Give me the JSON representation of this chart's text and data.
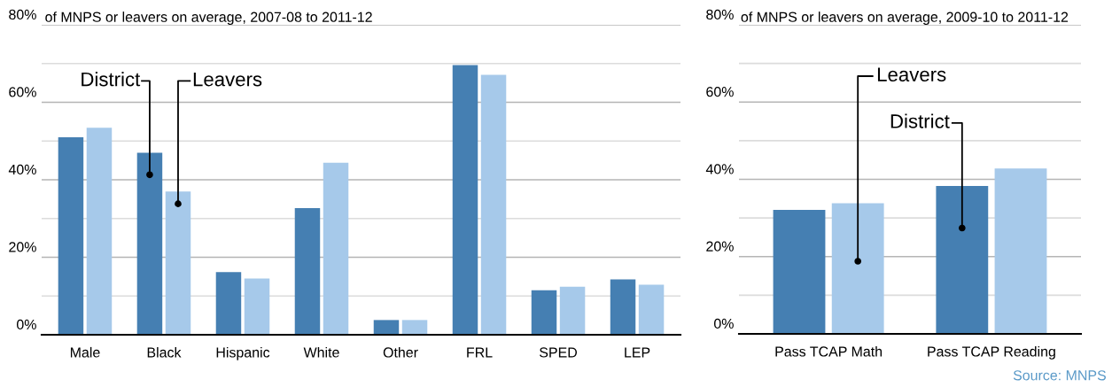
{
  "chart_data": [
    {
      "type": "bar",
      "title": "of MNPS or leavers on average, 2007-08 to 2011-12",
      "categories": [
        "Male",
        "Black",
        "Hispanic",
        "White",
        "Other",
        "FRL",
        "SPED",
        "LEP"
      ],
      "series": [
        {
          "name": "District",
          "color": "#457fb2",
          "values": [
            51.0,
            47.0,
            16.2,
            32.7,
            3.8,
            69.6,
            11.5,
            14.3
          ]
        },
        {
          "name": "Leavers",
          "color": "#a6c9ea",
          "values": [
            53.4,
            37.0,
            14.5,
            44.4,
            3.8,
            67.1,
            12.4,
            12.9
          ]
        }
      ],
      "ylim": [
        0,
        80
      ],
      "yticks": [
        {
          "value": 0,
          "label": "0%"
        },
        {
          "value": 10,
          "label": null
        },
        {
          "value": 20,
          "label": "20%"
        },
        {
          "value": 30,
          "label": null
        },
        {
          "value": 40,
          "label": "40%"
        },
        {
          "value": 50,
          "label": null
        },
        {
          "value": 60,
          "label": "60%"
        },
        {
          "value": 70,
          "label": null
        },
        {
          "value": 80,
          "label": "80%"
        }
      ],
      "grid": "y"
    },
    {
      "type": "bar",
      "title": "of MNPS or leavers on average, 2009-10 to 2011-12",
      "categories": [
        "Pass TCAP Math",
        "Pass TCAP Reading"
      ],
      "series": [
        {
          "name": "District",
          "color": "#457fb2",
          "values": [
            32.1,
            38.3
          ]
        },
        {
          "name": "Leavers",
          "color": "#a6c9ea",
          "values": [
            33.8,
            42.8
          ]
        }
      ],
      "ylim": [
        0,
        80
      ],
      "yticks": [
        {
          "value": 0,
          "label": "0%"
        },
        {
          "value": 10,
          "label": null
        },
        {
          "value": 20,
          "label": "20%"
        },
        {
          "value": 30,
          "label": null
        },
        {
          "value": 40,
          "label": "40%"
        },
        {
          "value": 50,
          "label": null
        },
        {
          "value": 60,
          "label": "60%"
        },
        {
          "value": 70,
          "label": null
        },
        {
          "value": 80,
          "label": "80%"
        }
      ],
      "grid": "y",
      "annotations": [
        "Source: MNPS"
      ]
    }
  ]
}
